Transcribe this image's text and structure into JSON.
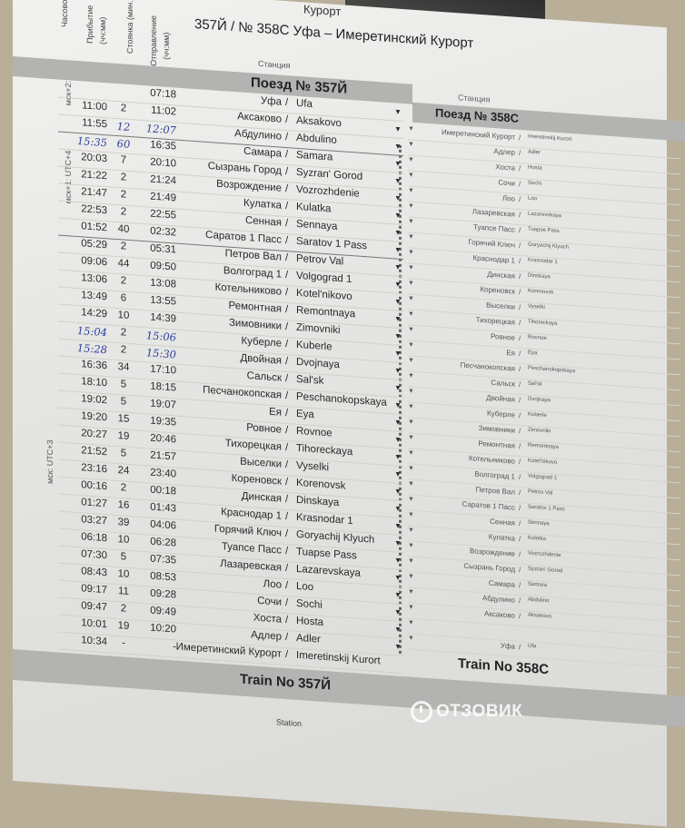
{
  "header": {
    "title_top": "Курорт",
    "title": "357Й / № 358С Уфа – Имеретинский Курорт",
    "col_timezone": "Часовой",
    "col_arrival": "Прибытие",
    "col_arrival_unit": "(чч:мм)",
    "col_stop": "Стоянка (мин.)",
    "col_departure": "Отправление",
    "col_departure_unit": "(чч:мм)",
    "col_station": "Станция",
    "col_station_right": "Станция"
  },
  "timezones": [
    "мск+2:",
    "мск+1: UTC+4",
    "мск: UTC+3"
  ],
  "train_357": {
    "title": "Поезд № 357Й",
    "footer": "Train No 357Й",
    "rows": [
      {
        "arr": "",
        "stop": "",
        "dep": "07:18",
        "ru": "Уфа",
        "en": "Ufa"
      },
      {
        "arr": "11:00",
        "stop": "2",
        "dep": "11:02",
        "ru": "Аксаково",
        "en": "Aksakovo"
      },
      {
        "arr": "11:55",
        "stop": "12",
        "dep": "12:07",
        "ru": "Абдулино",
        "en": "Abdulino",
        "hand": [
          "stop",
          "dep"
        ]
      },
      {
        "arr": "15:35",
        "stop": "60",
        "dep": "16:35",
        "ru": "Самара",
        "en": "Samara",
        "hand": [
          "arr",
          "stop"
        ]
      },
      {
        "arr": "20:03",
        "stop": "7",
        "dep": "20:10",
        "ru": "Сызрань Город",
        "en": "Syzran' Gorod"
      },
      {
        "arr": "21:22",
        "stop": "2",
        "dep": "21:24",
        "ru": "Возрождение",
        "en": "Vozrozhdenie"
      },
      {
        "arr": "21:47",
        "stop": "2",
        "dep": "21:49",
        "ru": "Кулатка",
        "en": "Kulatka"
      },
      {
        "arr": "22:53",
        "stop": "2",
        "dep": "22:55",
        "ru": "Сенная",
        "en": "Sennaya"
      },
      {
        "arr": "01:52",
        "stop": "40",
        "dep": "02:32",
        "ru": "Саратов 1 Пасс",
        "en": "Saratov 1 Pass"
      },
      {
        "arr": "05:29",
        "stop": "2",
        "dep": "05:31",
        "ru": "Петров Вал",
        "en": "Petrov Val"
      },
      {
        "arr": "09:06",
        "stop": "44",
        "dep": "09:50",
        "ru": "Волгоград 1",
        "en": "Volgograd 1"
      },
      {
        "arr": "13:06",
        "stop": "2",
        "dep": "13:08",
        "ru": "Котельниково",
        "en": "Kotel'nikovo"
      },
      {
        "arr": "13:49",
        "stop": "6",
        "dep": "13:55",
        "ru": "Ремонтная",
        "en": "Remontnaya"
      },
      {
        "arr": "14:29",
        "stop": "10",
        "dep": "14:39",
        "ru": "Зимовники",
        "en": "Zimovniki"
      },
      {
        "arr": "15:04",
        "stop": "2",
        "dep": "15:06",
        "ru": "Куберле",
        "en": "Kuberle",
        "hand": [
          "arr",
          "dep"
        ]
      },
      {
        "arr": "15:28",
        "stop": "2",
        "dep": "15:30",
        "ru": "Двойная",
        "en": "Dvojnaya",
        "hand": [
          "arr",
          "dep"
        ]
      },
      {
        "arr": "16:36",
        "stop": "34",
        "dep": "17:10",
        "ru": "Сальск",
        "en": "Sal'sk"
      },
      {
        "arr": "18:10",
        "stop": "5",
        "dep": "18:15",
        "ru": "Песчанокопская",
        "en": "Peschanokopskaya"
      },
      {
        "arr": "19:02",
        "stop": "5",
        "dep": "19:07",
        "ru": "Ея",
        "en": "Eya"
      },
      {
        "arr": "19:20",
        "stop": "15",
        "dep": "19:35",
        "ru": "Ровное",
        "en": "Rovnoe"
      },
      {
        "arr": "20:27",
        "stop": "19",
        "dep": "20:46",
        "ru": "Тихорецкая",
        "en": "Tihoreckaya"
      },
      {
        "arr": "21:52",
        "stop": "5",
        "dep": "21:57",
        "ru": "Выселки",
        "en": "Vyselki"
      },
      {
        "arr": "23:16",
        "stop": "24",
        "dep": "23:40",
        "ru": "Кореновск",
        "en": "Korenovsk"
      },
      {
        "arr": "00:16",
        "stop": "2",
        "dep": "00:18",
        "ru": "Динская",
        "en": "Dinskaya"
      },
      {
        "arr": "01:27",
        "stop": "16",
        "dep": "01:43",
        "ru": "Краснодар 1",
        "en": "Krasnodar 1"
      },
      {
        "arr": "03:27",
        "stop": "39",
        "dep": "04:06",
        "ru": "Горячий Ключ",
        "en": "Goryachij Klyuch"
      },
      {
        "arr": "06:18",
        "stop": "10",
        "dep": "06:28",
        "ru": "Туапсе Пасс",
        "en": "Tuapse Pass"
      },
      {
        "arr": "07:30",
        "stop": "5",
        "dep": "07:35",
        "ru": "Лазаревская",
        "en": "Lazarevskaya"
      },
      {
        "arr": "08:43",
        "stop": "10",
        "dep": "08:53",
        "ru": "Лоо",
        "en": "Loo"
      },
      {
        "arr": "09:17",
        "stop": "11",
        "dep": "09:28",
        "ru": "Сочи",
        "en": "Sochi"
      },
      {
        "arr": "09:47",
        "stop": "2",
        "dep": "09:49",
        "ru": "Хоста",
        "en": "Hosta"
      },
      {
        "arr": "10:01",
        "stop": "19",
        "dep": "10:20",
        "ru": "Адлер",
        "en": "Adler"
      },
      {
        "arr": "10:34",
        "stop": "-",
        "dep": "-",
        "ru": "Имеретинский Курорт",
        "en": "Imeretinskij Kurort"
      }
    ]
  },
  "train_358": {
    "title": "Поезд № 358С",
    "footer": "Train No 358С",
    "rows": [
      {
        "ru": "Имеретинский Курорт",
        "en": "Imeretinskij Kurort"
      },
      {
        "ru": "Адлер",
        "en": "Adler"
      },
      {
        "ru": "Хоста",
        "en": "Hosta"
      },
      {
        "ru": "Сочи",
        "en": "Sochi"
      },
      {
        "ru": "Лоо",
        "en": "Loo"
      },
      {
        "ru": "Лазаревская",
        "en": "Lazarevskaya"
      },
      {
        "ru": "Туапсе Пасс",
        "en": "Tuapse Pass"
      },
      {
        "ru": "Горячий Ключ",
        "en": "Goryachij Klyuch"
      },
      {
        "ru": "Краснодар 1",
        "en": "Krasnodar 1"
      },
      {
        "ru": "Динская",
        "en": "Dinskaya"
      },
      {
        "ru": "Кореновск",
        "en": "Korenovsk"
      },
      {
        "ru": "Выселки",
        "en": "Vyselki"
      },
      {
        "ru": "Тихорецкая",
        "en": "Tihoreckaya"
      },
      {
        "ru": "Ровное",
        "en": "Rovnoe"
      },
      {
        "ru": "Ея",
        "en": "Eya"
      },
      {
        "ru": "Песчанокопская",
        "en": "Peschanokopskaya"
      },
      {
        "ru": "Сальск",
        "en": "Sal'sk"
      },
      {
        "ru": "Двойная",
        "en": "Dvojnaya"
      },
      {
        "ru": "Куберле",
        "en": "Kuberle"
      },
      {
        "ru": "Зимовники",
        "en": "Zimovniki"
      },
      {
        "ru": "Ремонтная",
        "en": "Remontnaya"
      },
      {
        "ru": "Котельниково",
        "en": "Kotel'nikovo"
      },
      {
        "ru": "Волгоград 1",
        "en": "Volgograd 1"
      },
      {
        "ru": "Петров Вал",
        "en": "Petrov Val"
      },
      {
        "ru": "Саратов 1 Пасс",
        "en": "Saratov 1 Pass"
      },
      {
        "ru": "Сенная",
        "en": "Sennaya"
      },
      {
        "ru": "Кулатка",
        "en": "Kulatka"
      },
      {
        "ru": "Возрождение",
        "en": "Vozrozhdenie"
      },
      {
        "ru": "Сызрань Город",
        "en": "Syzran' Gorod"
      },
      {
        "ru": "Самара",
        "en": "Samara"
      },
      {
        "ru": "Абдулино",
        "en": "Abdulino"
      },
      {
        "ru": "Аксаково",
        "en": "Aksakovo"
      },
      {
        "ru": "",
        "en": ""
      },
      {
        "ru": "Уфа",
        "en": "Ufa"
      }
    ]
  },
  "footer": {
    "station_label": "Station"
  },
  "watermark": "ОТЗОВИК",
  "colors": {
    "handwriting": "#2d3f9e",
    "band": "#b3b3b1"
  }
}
